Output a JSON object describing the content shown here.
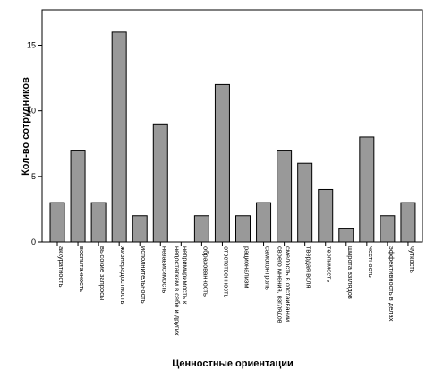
{
  "chart_data": {
    "type": "bar",
    "title": "",
    "xlabel": "Ценностные ориентации",
    "ylabel": "Кол-во сотрудников",
    "ylim": [
      0,
      17.7
    ],
    "yticks": [
      0,
      5,
      10,
      15
    ],
    "grid": false,
    "bar_color": "#999999",
    "categories": [
      [
        "аккуратность"
      ],
      [
        "воспитанность"
      ],
      [
        "высокие запросы"
      ],
      [
        "жизнерадостность"
      ],
      [
        "исполнительность"
      ],
      [
        "независимость"
      ],
      [
        "непримиримость к",
        "недостаткам в себе и других"
      ],
      [
        "образованность"
      ],
      [
        "ответственность"
      ],
      [
        "рационализм"
      ],
      [
        "самоконтроль"
      ],
      [
        "смелость в отстаивании",
        "своего мнения, взглядов"
      ],
      [
        "твердая воля"
      ],
      [
        "терпимость"
      ],
      [
        "широта взглядов"
      ],
      [
        "честность"
      ],
      [
        "эффективность в делах"
      ],
      [
        "чуткость"
      ]
    ],
    "values": [
      3,
      7,
      3,
      16,
      2,
      9,
      0,
      2,
      12,
      2,
      3,
      7,
      6,
      4,
      1,
      8,
      2,
      3
    ]
  }
}
